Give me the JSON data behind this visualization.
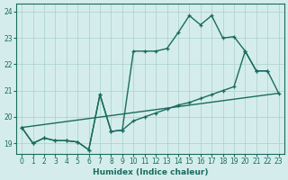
{
  "xlabel": "Humidex (Indice chaleur)",
  "bg_color": "#d4edec",
  "line_color": "#1a6b5e",
  "grid_color": "#afd4ce",
  "xlim": [
    -0.5,
    23.5
  ],
  "ylim": [
    18.6,
    24.3
  ],
  "yticks": [
    19,
    20,
    21,
    22,
    23,
    24
  ],
  "xticks": [
    0,
    1,
    2,
    3,
    4,
    5,
    6,
    7,
    8,
    9,
    10,
    11,
    12,
    13,
    14,
    15,
    16,
    17,
    18,
    19,
    20,
    21,
    22,
    23
  ],
  "line1_x": [
    0,
    1,
    2,
    3,
    4,
    5,
    6,
    7,
    8,
    9,
    10,
    11,
    12,
    13,
    14,
    15,
    16,
    17,
    18,
    19,
    20,
    21,
    22
  ],
  "line1_y": [
    19.6,
    19.0,
    19.2,
    19.1,
    19.1,
    19.05,
    18.75,
    20.85,
    19.45,
    19.5,
    22.5,
    22.5,
    22.5,
    22.6,
    23.2,
    23.85,
    23.5,
    23.85,
    23.0,
    23.05,
    22.5,
    21.75,
    21.75
  ],
  "line2_x": [
    0,
    1,
    2,
    3,
    4,
    5,
    6,
    7,
    8,
    9,
    10,
    11,
    12,
    13,
    14,
    15,
    16,
    17,
    18,
    19,
    20,
    21,
    22,
    23
  ],
  "line2_y": [
    19.6,
    19.0,
    19.2,
    19.1,
    19.1,
    19.05,
    18.75,
    20.85,
    19.45,
    19.5,
    19.85,
    20.0,
    20.15,
    20.3,
    20.45,
    20.55,
    20.7,
    20.85,
    21.0,
    21.15,
    22.5,
    21.75,
    21.75,
    20.9
  ],
  "line3_x": [
    0,
    23
  ],
  "line3_y": [
    19.6,
    20.9
  ],
  "markersize": 3.5,
  "linewidth": 1.0
}
